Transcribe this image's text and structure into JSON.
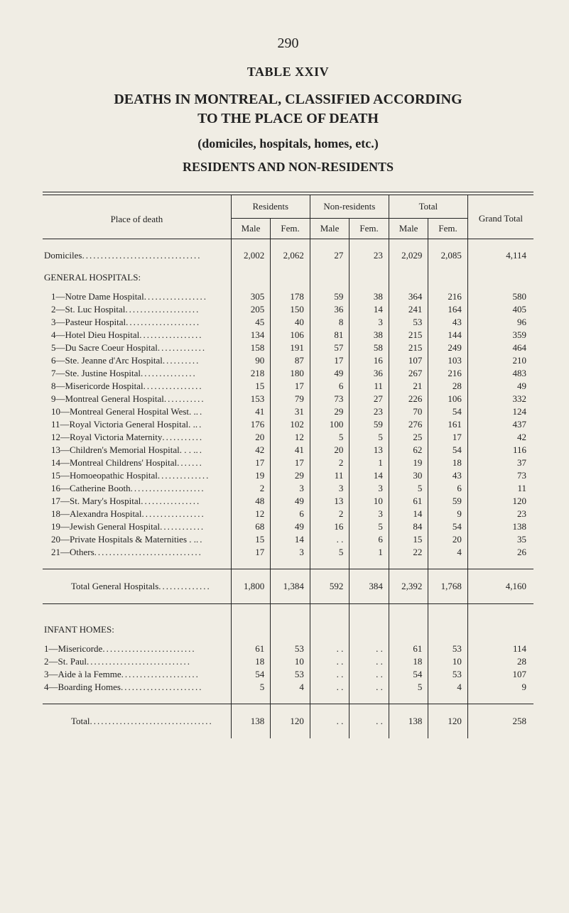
{
  "page_number": "290",
  "table_label": "TABLE XXIV",
  "title_line1": "DEATHS IN MONTREAL, CLASSIFIED ACCORDING",
  "title_line2": "TO THE PLACE OF DEATH",
  "subtitle1": "(domiciles, hospitals, homes, etc.)",
  "subtitle2": "RESIDENTS AND NON-RESIDENTS",
  "headers": {
    "place": "Place of death",
    "residents": "Residents",
    "nonresidents": "Non-residents",
    "total": "Total",
    "grand": "Grand Total",
    "male": "Male",
    "fem": "Fem."
  },
  "domiciles": {
    "label": "Domiciles",
    "vals": [
      "2,002",
      "2,062",
      "27",
      "23",
      "2,029",
      "2,085",
      "4,114"
    ]
  },
  "gen_hosp_title": "GENERAL HOSPITALS:",
  "rows": [
    {
      "label": "1—Notre Dame Hospital",
      "v": [
        "305",
        "178",
        "59",
        "38",
        "364",
        "216",
        "580"
      ]
    },
    {
      "label": "2—St. Luc Hospital",
      "v": [
        "205",
        "150",
        "36",
        "14",
        "241",
        "164",
        "405"
      ]
    },
    {
      "label": "3—Pasteur Hospital",
      "v": [
        "45",
        "40",
        "8",
        "3",
        "53",
        "43",
        "96"
      ]
    },
    {
      "label": "4—Hotel Dieu Hospital",
      "v": [
        "134",
        "106",
        "81",
        "38",
        "215",
        "144",
        "359"
      ]
    },
    {
      "label": "5—Du Sacre Coeur Hospital",
      "v": [
        "158",
        "191",
        "57",
        "58",
        "215",
        "249",
        "464"
      ]
    },
    {
      "label": "6—Ste. Jeanne d'Arc Hospital",
      "v": [
        "90",
        "87",
        "17",
        "16",
        "107",
        "103",
        "210"
      ]
    },
    {
      "label": "7—Ste. Justine Hospital",
      "v": [
        "218",
        "180",
        "49",
        "36",
        "267",
        "216",
        "483"
      ]
    },
    {
      "label": "8—Misericorde Hospital",
      "v": [
        "15",
        "17",
        "6",
        "11",
        "21",
        "28",
        "49"
      ]
    },
    {
      "label": "9—Montreal General Hospital",
      "v": [
        "153",
        "79",
        "73",
        "27",
        "226",
        "106",
        "332"
      ]
    },
    {
      "label": "10—Montreal General Hospital West. .",
      "v": [
        "41",
        "31",
        "29",
        "23",
        "70",
        "54",
        "124"
      ]
    },
    {
      "label": "11—Royal Victoria General Hospital. .",
      "v": [
        "176",
        "102",
        "100",
        "59",
        "276",
        "161",
        "437"
      ]
    },
    {
      "label": "12—Royal Victoria Maternity",
      "v": [
        "20",
        "12",
        "5",
        "5",
        "25",
        "17",
        "42"
      ]
    },
    {
      "label": "13—Children's Memorial Hospital. . . .",
      "v": [
        "42",
        "41",
        "20",
        "13",
        "62",
        "54",
        "116"
      ]
    },
    {
      "label": "14—Montreal Childrens' Hospital",
      "v": [
        "17",
        "17",
        "2",
        "1",
        "19",
        "18",
        "37"
      ]
    },
    {
      "label": "15—Homoeopathic Hospital",
      "v": [
        "19",
        "29",
        "11",
        "14",
        "30",
        "43",
        "73"
      ]
    },
    {
      "label": "16—Catherine Booth",
      "v": [
        "2",
        "3",
        "3",
        "3",
        "5",
        "6",
        "11"
      ]
    },
    {
      "label": "17—St. Mary's Hospital",
      "v": [
        "48",
        "49",
        "13",
        "10",
        "61",
        "59",
        "120"
      ]
    },
    {
      "label": "18—Alexandra Hospital",
      "v": [
        "12",
        "6",
        "2",
        "3",
        "14",
        "9",
        "23"
      ]
    },
    {
      "label": "19—Jewish General Hospital",
      "v": [
        "68",
        "49",
        "16",
        "5",
        "84",
        "54",
        "138"
      ]
    },
    {
      "label": "20—Private Hospitals & Maternities . .",
      "v": [
        "15",
        "14",
        ". .",
        "6",
        "15",
        "20",
        "35"
      ]
    },
    {
      "label": "21—Others",
      "v": [
        "17",
        "3",
        "5",
        "1",
        "22",
        "4",
        "26"
      ]
    }
  ],
  "gen_total": {
    "label": "Total General Hospitals",
    "vals": [
      "1,800",
      "1,384",
      "592",
      "384",
      "2,392",
      "1,768",
      "4,160"
    ]
  },
  "infant_title": "INFANT HOMES:",
  "infant_rows": [
    {
      "label": "1—Misericorde",
      "v": [
        "61",
        "53",
        ". .",
        ". .",
        "61",
        "53",
        "114"
      ]
    },
    {
      "label": "2—St. Paul",
      "v": [
        "18",
        "10",
        ". .",
        ". .",
        "18",
        "10",
        "28"
      ]
    },
    {
      "label": "3—Aide à la Femme",
      "v": [
        "54",
        "53",
        ". .",
        ". .",
        "54",
        "53",
        "107"
      ]
    },
    {
      "label": "4—Boarding Homes",
      "v": [
        "5",
        "4",
        ". .",
        ". .",
        "5",
        "4",
        "9"
      ]
    }
  ],
  "infant_total": {
    "label": "Total",
    "vals": [
      "138",
      "120",
      ". .",
      ". .",
      "138",
      "120",
      "258"
    ]
  }
}
